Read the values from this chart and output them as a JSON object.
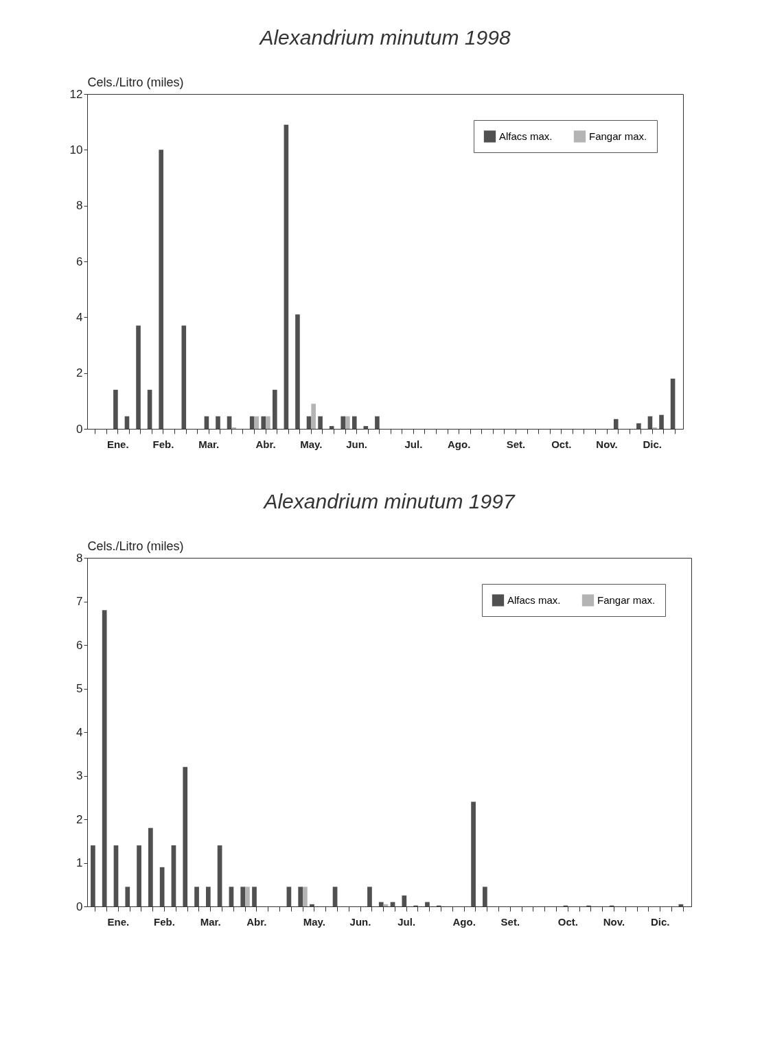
{
  "chart_data": [
    {
      "type": "bar",
      "title": "Alexandrium minutum 1998",
      "ylabel": "Cels./Litro (miles)",
      "categories": [
        null,
        null,
        "Ene.",
        null,
        null,
        null,
        "Feb.",
        null,
        null,
        null,
        "Mar.",
        null,
        null,
        null,
        null,
        "Abr.",
        null,
        null,
        null,
        "May.",
        null,
        null,
        null,
        "Jun.",
        null,
        null,
        null,
        null,
        "Jul.",
        null,
        null,
        null,
        "Ago.",
        null,
        null,
        null,
        null,
        "Set.",
        null,
        null,
        null,
        "Oct.",
        null,
        null,
        null,
        "Nov.",
        null,
        null,
        null,
        "Dic.",
        null,
        null
      ],
      "series": [
        {
          "name": "Alfacs max.",
          "color": "#505050",
          "values": [
            null,
            null,
            1.4,
            0.45,
            3.7,
            1.4,
            10,
            null,
            3.7,
            null,
            0.45,
            0.45,
            0.45,
            null,
            0.45,
            0.45,
            1.4,
            10.9,
            4.1,
            0.45,
            0.45,
            0.1,
            0.45,
            0.45,
            0.1,
            0.45,
            null,
            null,
            null,
            null,
            null,
            null,
            null,
            null,
            null,
            null,
            null,
            null,
            null,
            null,
            null,
            null,
            null,
            null,
            null,
            null,
            0.35,
            null,
            0.2,
            0.45,
            0.5,
            1.8
          ]
        },
        {
          "name": "Fangar max.",
          "color": "#b4b4b4",
          "values": [
            null,
            null,
            null,
            null,
            null,
            null,
            null,
            null,
            null,
            null,
            null,
            null,
            0.05,
            null,
            0.45,
            0.45,
            null,
            null,
            null,
            0.9,
            null,
            null,
            0.45,
            null,
            null,
            null,
            null,
            null,
            null,
            null,
            null,
            null,
            null,
            null,
            null,
            null,
            null,
            null,
            null,
            null,
            null,
            null,
            null,
            null,
            null,
            null,
            null,
            null,
            null,
            0.05,
            null,
            null
          ]
        }
      ],
      "ylim": [
        0,
        12
      ],
      "yticks": [
        0,
        2,
        4,
        6,
        8,
        10,
        12
      ],
      "legend": "top right",
      "grid": false
    },
    {
      "type": "bar",
      "title": "Alexandrium minutum 1997",
      "ylabel": "Cels./Litro (miles)",
      "categories": [
        null,
        null,
        "Ene.",
        null,
        null,
        null,
        "Feb.",
        null,
        null,
        null,
        "Mar.",
        null,
        null,
        null,
        "Abr.",
        null,
        null,
        null,
        null,
        "May.",
        null,
        null,
        null,
        "Jun.",
        null,
        null,
        null,
        "Jul.",
        null,
        null,
        null,
        null,
        "Ago.",
        null,
        null,
        null,
        "Set.",
        null,
        null,
        null,
        null,
        "Oct.",
        null,
        null,
        null,
        "Nov.",
        null,
        null,
        null,
        "Dic.",
        null,
        null
      ],
      "series": [
        {
          "name": "Alfacs max.",
          "color": "#505050",
          "values": [
            1.4,
            6.8,
            1.4,
            0.45,
            1.4,
            1.8,
            0.9,
            1.4,
            3.2,
            0.45,
            0.45,
            1.4,
            0.45,
            0.45,
            0.45,
            null,
            null,
            0.45,
            0.45,
            0.05,
            null,
            0.45,
            null,
            null,
            0.45,
            0.1,
            0.1,
            0.25,
            0.02,
            0.1,
            0.02,
            null,
            null,
            2.4,
            0.45,
            null,
            null,
            null,
            null,
            null,
            null,
            0.02,
            null,
            0.02,
            null,
            0.02,
            null,
            null,
            null,
            null,
            null,
            0.05
          ]
        },
        {
          "name": "Fangar max.",
          "color": "#b4b4b4",
          "values": [
            null,
            null,
            null,
            null,
            null,
            null,
            null,
            null,
            null,
            null,
            null,
            null,
            null,
            0.45,
            null,
            null,
            null,
            null,
            0.45,
            null,
            null,
            null,
            null,
            null,
            null,
            0.05,
            null,
            null,
            null,
            null,
            null,
            null,
            null,
            null,
            null,
            null,
            null,
            null,
            null,
            null,
            null,
            null,
            null,
            null,
            null,
            null,
            null,
            null,
            null,
            null,
            null,
            null
          ]
        }
      ],
      "ylim": [
        0,
        8
      ],
      "yticks": [
        0,
        1,
        2,
        3,
        4,
        5,
        6,
        7,
        8
      ],
      "legend": "top right",
      "grid": false
    }
  ]
}
